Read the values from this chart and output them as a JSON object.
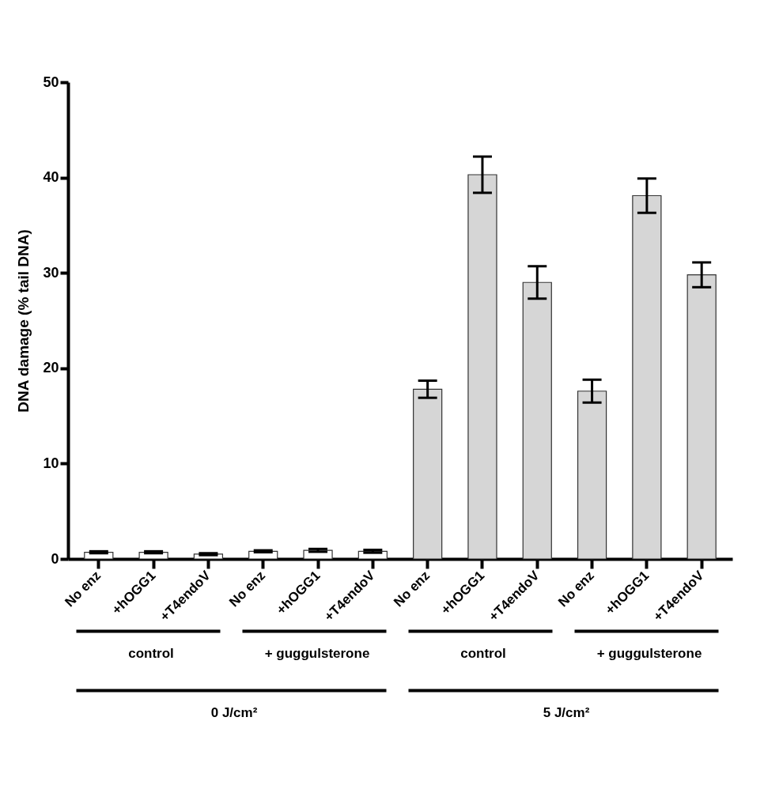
{
  "chart_data": {
    "type": "bar",
    "ylabel": "DNA damage (% tail DNA)",
    "categories": [
      "No enz",
      "+hOGG1",
      "+T4endoV",
      "No enz",
      "+hOGG1",
      "+T4endoV",
      "No enz",
      "+hOGG1",
      "+T4endoV",
      "No enz",
      "+hOGG1",
      "+T4endoV"
    ],
    "values": [
      0.7,
      0.7,
      0.5,
      0.8,
      0.9,
      0.8,
      17.8,
      40.3,
      29.0,
      17.6,
      38.1,
      29.8
    ],
    "errors": [
      0.1,
      0.1,
      0.1,
      0.1,
      0.15,
      0.15,
      0.9,
      1.9,
      1.7,
      1.2,
      1.8,
      1.3
    ],
    "colors": [
      "#ffffff",
      "#ffffff",
      "#ffffff",
      "#ffffff",
      "#ffffff",
      "#ffffff",
      "#d6d6d6",
      "#d6d6d6",
      "#d6d6d6",
      "#d6d6d6",
      "#d6d6d6",
      "#d6d6d6"
    ],
    "ylim": [
      0,
      50
    ],
    "yticks": [
      0,
      10,
      20,
      30,
      40,
      50
    ],
    "grid": false,
    "annotations": [
      "control",
      "+ guggulsterone",
      "control",
      "+ guggulsterone",
      "0 J/cm²",
      "5 J/cm²"
    ]
  }
}
